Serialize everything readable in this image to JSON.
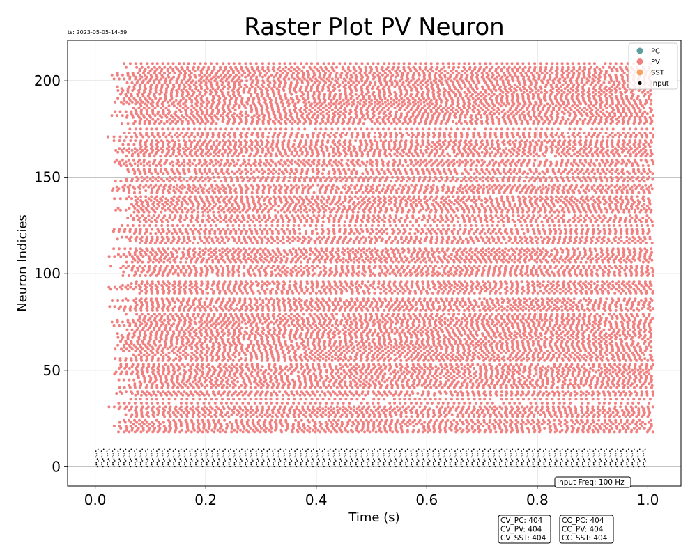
{
  "timestamp": "ts: 2023-05-05-14-59",
  "chart_data": {
    "type": "scatter",
    "title": "Raster Plot PV Neuron",
    "xlabel": "Time (s)",
    "ylabel": "Neuron Indicies",
    "xlim": [
      -0.05,
      1.06
    ],
    "ylim": [
      -10,
      221
    ],
    "xticks": [
      0.0,
      0.2,
      0.4,
      0.6,
      0.8,
      1.0
    ],
    "xtick_labels": [
      "0.0",
      "0.2",
      "0.4",
      "0.6",
      "0.8",
      "1.0"
    ],
    "yticks": [
      0,
      50,
      100,
      150,
      200
    ],
    "ytick_labels": [
      "0",
      "50",
      "100",
      "150",
      "200"
    ],
    "grid": true,
    "legend_position": "top-right",
    "series": [
      {
        "name": "PC",
        "color": "#5f9e9f",
        "neuron_range": null,
        "x_range": null,
        "rate_hz": null
      },
      {
        "name": "PV",
        "color": "#f08080",
        "neuron_range": [
          18,
          209
        ],
        "x_range": [
          0.02,
          1.01
        ],
        "rate_hz": 100
      },
      {
        "name": "SST",
        "color": "#f4a460",
        "neuron_range": null,
        "x_range": null,
        "rate_hz": null
      },
      {
        "name": "input",
        "color": "#000000",
        "neuron_range": [
          0,
          9
        ],
        "x_range": [
          0.0,
          1.0
        ],
        "rate_hz": 100
      }
    ],
    "annotations": [
      {
        "id": "input-freq",
        "text": [
          "Input Freq: 100 Hz"
        ]
      },
      {
        "id": "cv-stats",
        "text": [
          "CV_PC: 404",
          "CV_PV: 404",
          "CV_SST: 404"
        ]
      },
      {
        "id": "cc-stats",
        "text": [
          "CC_PC: 404",
          "CC_PV: 404",
          "CC_SST: 404"
        ]
      }
    ]
  }
}
